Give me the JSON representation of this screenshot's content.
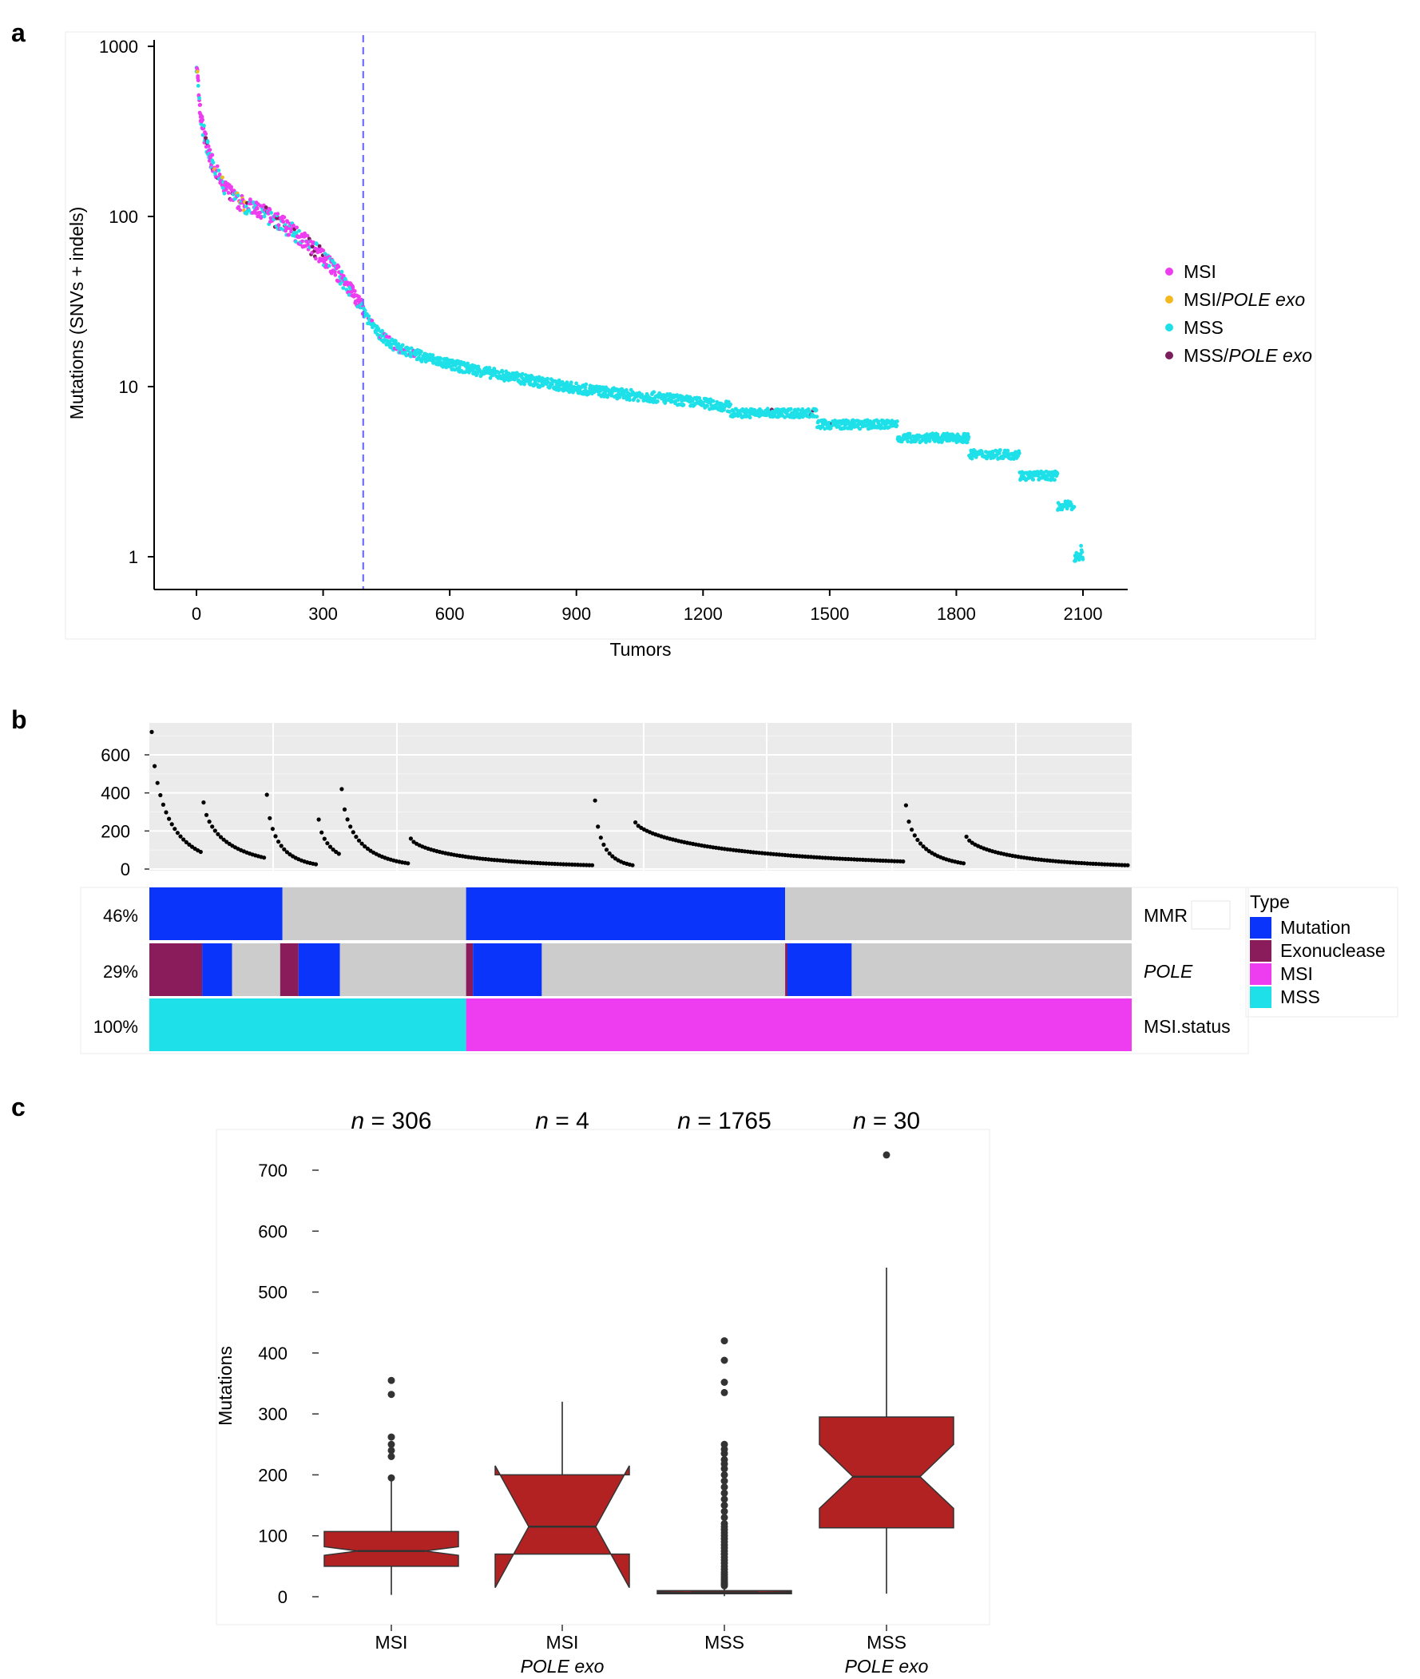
{
  "colors": {
    "msi": "#ee3cf0",
    "msi_pole": "#f5b81f",
    "mss": "#1ee0e8",
    "mss_pole": "#7a1e5e",
    "mutation": "#0a34fa",
    "exonuclease": "#8a1c5c",
    "na": "#cccccc",
    "box": "#b22222",
    "vline": "#6d6dff"
  },
  "panel_a": {
    "label": "a",
    "chart_data": {
      "type": "scatter",
      "title": "",
      "xlabel": "Tumors",
      "ylabel": "Mutations (SNVs + indels)",
      "y_scale": "log",
      "xlim": [
        -70,
        2200
      ],
      "ylim": [
        0.82,
        1050
      ],
      "x_ticks": [
        0,
        300,
        600,
        900,
        1200,
        1500,
        1800,
        2100
      ],
      "x_tick_labels": [
        "0",
        "300",
        "600",
        "900",
        "1200",
        "1500",
        "1800",
        "2100"
      ],
      "y_ticks": [
        1,
        10,
        100,
        1000
      ],
      "y_tick_labels": [
        "1",
        "10",
        "100",
        "1000"
      ],
      "cutoff_x": 395,
      "grid": false,
      "legend_placement": "right",
      "legend": [
        {
          "key": "msi",
          "label": "MSI",
          "italic": ""
        },
        {
          "key": "msi_pole",
          "label": "MSI/",
          "italic": "POLE exo"
        },
        {
          "key": "mss",
          "label": "MSS",
          "italic": ""
        },
        {
          "key": "mss_pole",
          "label": "MSS/",
          "italic": "POLE exo"
        }
      ],
      "curve": [
        [
          0,
          800
        ],
        [
          10,
          380
        ],
        [
          30,
          230
        ],
        [
          60,
          155
        ],
        [
          100,
          122
        ],
        [
          150,
          108
        ],
        [
          200,
          92
        ],
        [
          250,
          75
        ],
        [
          300,
          58
        ],
        [
          340,
          45
        ],
        [
          370,
          36
        ],
        [
          395,
          28
        ],
        [
          420,
          22
        ],
        [
          460,
          18
        ],
        [
          500,
          16
        ],
        [
          600,
          13.5
        ],
        [
          700,
          12
        ],
        [
          800,
          10.8
        ],
        [
          900,
          9.8
        ],
        [
          1000,
          9.1
        ],
        [
          1100,
          8.6
        ],
        [
          1200,
          8.0
        ],
        [
          1300,
          7.4
        ],
        [
          1400,
          7.0
        ],
        [
          1470,
          6.6
        ],
        [
          1560,
          6.1
        ],
        [
          1650,
          5.6
        ],
        [
          1720,
          5.1
        ],
        [
          1800,
          4.9
        ],
        [
          1880,
          4.0
        ],
        [
          1950,
          3.3
        ],
        [
          2000,
          3.0
        ],
        [
          2040,
          2.8
        ],
        [
          2060,
          2.0
        ],
        [
          2080,
          1.6
        ],
        [
          2100,
          1.0
        ]
      ],
      "steps": [
        {
          "x0": 1265,
          "x1": 1470,
          "y": 7.0
        },
        {
          "x0": 1470,
          "x1": 1660,
          "y": 6.0
        },
        {
          "x0": 1660,
          "x1": 1830,
          "y": 5.0
        },
        {
          "x0": 1830,
          "x1": 1950,
          "y": 4.0
        },
        {
          "x0": 1950,
          "x1": 2040,
          "y": 3.0
        },
        {
          "x0": 2040,
          "x1": 2080,
          "y": 2.0
        },
        {
          "x0": 2080,
          "x1": 2095,
          "y": 1.0
        }
      ]
    }
  },
  "panel_b": {
    "label": "b",
    "chart_data": {
      "type": "scatter",
      "title": "",
      "xlabel": "",
      "ylabel": "",
      "ylim": [
        0,
        760
      ],
      "y_ticks": [
        0,
        200,
        400,
        600
      ],
      "y_tick_labels": [
        "0",
        "200",
        "400",
        "600"
      ],
      "n_samples": 340,
      "grid": true,
      "segments": [
        {
          "start": 0,
          "end": 18,
          "y0": 720,
          "y1": 90
        },
        {
          "start": 18,
          "end": 40,
          "y0": 350,
          "y1": 60
        },
        {
          "start": 40,
          "end": 58,
          "y0": 390,
          "y1": 25
        },
        {
          "start": 58,
          "end": 66,
          "y0": 260,
          "y1": 80
        },
        {
          "start": 66,
          "end": 90,
          "y0": 420,
          "y1": 30
        },
        {
          "start": 90,
          "end": 154,
          "y0": 160,
          "y1": 20
        },
        {
          "start": 154,
          "end": 168,
          "y0": 360,
          "y1": 20
        },
        {
          "start": 168,
          "end": 262,
          "y0": 245,
          "y1": 40
        },
        {
          "start": 262,
          "end": 283,
          "y0": 335,
          "y1": 30
        },
        {
          "start": 283,
          "end": 340,
          "y0": 170,
          "y1": 20
        }
      ]
    },
    "tracks": [
      {
        "name": "MMR",
        "italic": false,
        "pct": "46%",
        "blocks": [
          {
            "start": 0,
            "end": 58,
            "key": "mutation"
          },
          {
            "start": 58,
            "end": 138,
            "key": "na"
          },
          {
            "start": 138,
            "end": 277,
            "key": "mutation"
          },
          {
            "start": 277,
            "end": 428,
            "key": "na"
          }
        ]
      },
      {
        "name": "POLE",
        "italic": true,
        "pct": "29%",
        "blocks": [
          {
            "start": 0,
            "end": 23,
            "key": "exonuclease"
          },
          {
            "start": 23,
            "end": 36,
            "key": "mutation"
          },
          {
            "start": 36,
            "end": 57,
            "key": "na"
          },
          {
            "start": 57,
            "end": 65,
            "key": "exonuclease"
          },
          {
            "start": 65,
            "end": 83,
            "key": "mutation"
          },
          {
            "start": 83,
            "end": 138,
            "key": "na"
          },
          {
            "start": 138,
            "end": 141,
            "key": "exonuclease"
          },
          {
            "start": 141,
            "end": 171,
            "key": "mutation"
          },
          {
            "start": 171,
            "end": 277,
            "key": "na"
          },
          {
            "start": 277,
            "end": 278,
            "key": "exonuclease"
          },
          {
            "start": 278,
            "end": 306,
            "key": "mutation"
          },
          {
            "start": 306,
            "end": 428,
            "key": "na"
          }
        ]
      },
      {
        "name": "MSI.status",
        "italic": false,
        "pct": "100%",
        "blocks": [
          {
            "start": 0,
            "end": 138,
            "key": "mss"
          },
          {
            "start": 138,
            "end": 428,
            "key": "msi"
          }
        ]
      }
    ],
    "track_units": 428,
    "legend_title": "Type",
    "legend": [
      {
        "key": "mutation",
        "label": "Mutation"
      },
      {
        "key": "exonuclease",
        "label": "Exonuclease"
      },
      {
        "key": "msi",
        "label": "MSI"
      },
      {
        "key": "mss",
        "label": "MSS"
      }
    ]
  },
  "panel_c": {
    "label": "c",
    "chart_data": {
      "type": "box",
      "title": "",
      "xlabel": "",
      "ylabel": "Mutations",
      "ylim": [
        -25,
        760
      ],
      "y_ticks": [
        0,
        100,
        200,
        300,
        400,
        500,
        600,
        700
      ],
      "y_tick_labels": [
        "0",
        "100",
        "200",
        "300",
        "400",
        "500",
        "600",
        "700"
      ],
      "groups": [
        {
          "label": "MSI",
          "sublabel": "",
          "n_prefix": "n",
          "n_text": " = 306",
          "q1": 50,
          "median": 75,
          "q3": 107,
          "notch_lo": 68,
          "notch_hi": 82,
          "whisker_lo": 3,
          "whisker_hi": 190,
          "outliers": [
            355,
            332,
            262,
            250,
            240,
            230,
            195
          ]
        },
        {
          "label": "MSI",
          "sublabel": "POLE exo",
          "n_prefix": "n",
          "n_text": " = 4",
          "q1": 70,
          "median": 115,
          "q3": 200,
          "notch_lo": 15,
          "notch_hi": 215,
          "whisker_lo": 70,
          "whisker_hi": 320,
          "outliers": []
        },
        {
          "label": "MSS",
          "sublabel": "",
          "n_prefix": "n",
          "n_text": " = 1765",
          "q1": 5,
          "median": 7,
          "q3": 10,
          "notch_lo": 6,
          "notch_hi": 8,
          "whisker_lo": 1,
          "whisker_hi": 17,
          "outliers": [
            420,
            388,
            352,
            335,
            250,
            242,
            235,
            225,
            218,
            210,
            200,
            190,
            180,
            170,
            160,
            150,
            140,
            130,
            120,
            115,
            110,
            105,
            100,
            95,
            90,
            85,
            80,
            75,
            70,
            65,
            60,
            55,
            50,
            45,
            40,
            36,
            32,
            28,
            25,
            22,
            20,
            18
          ]
        },
        {
          "label": "MSS",
          "sublabel": "POLE exo",
          "n_prefix": "n",
          "n_text": " = 30",
          "q1": 113,
          "median": 197,
          "q3": 295,
          "notch_lo": 145,
          "notch_hi": 250,
          "whisker_lo": 5,
          "whisker_hi": 540,
          "outliers": [
            725
          ]
        }
      ]
    }
  }
}
